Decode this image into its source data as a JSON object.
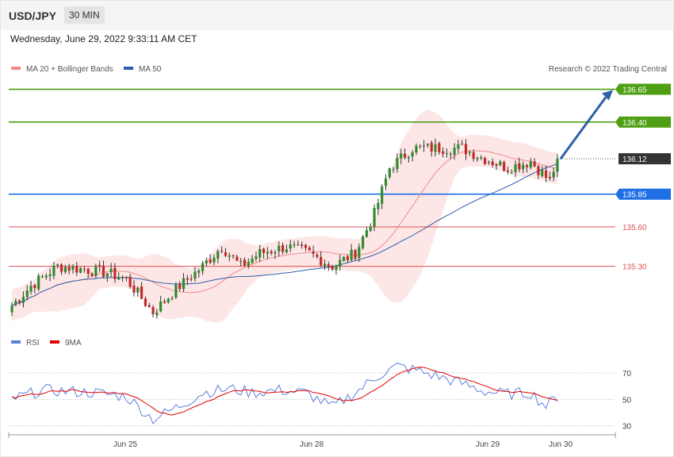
{
  "header": {
    "pair": "USD/JPY",
    "timeframe": "30 MIN",
    "datetime": "Wednesday, June 29, 2022 9:33:11 AM CET"
  },
  "legend_top": [
    {
      "label": "MA 20 + Bollinger Bands",
      "color": "#f08a8a"
    },
    {
      "label": "MA 50",
      "color": "#2e5fa8"
    }
  ],
  "legend_rsi": [
    {
      "label": "RSI",
      "color": "#5b7fdc"
    },
    {
      "label": "9MA",
      "color": "#e00000"
    }
  ],
  "credit": "Research © 2022 Trading Central",
  "colors": {
    "bull": "#2e8b2e",
    "bear": "#c62828",
    "resistance": "#4f9f15",
    "pivot": "#1f6fe5",
    "support": "#e05050",
    "last": "#333333",
    "arrow": "#2e5fa8",
    "band": "#fde2e2"
  },
  "chart_data": {
    "type": "candlestick",
    "y_range": [
      134.85,
      136.75
    ],
    "x_ticks": [
      "Jun 25",
      "Jun 28",
      "Jun 29",
      "Jun 30"
    ],
    "levels": [
      {
        "value": 136.65,
        "label": "136.65",
        "kind": "resistance"
      },
      {
        "value": 136.4,
        "label": "136.40",
        "kind": "resistance"
      },
      {
        "value": 136.12,
        "label": "136.12",
        "kind": "last"
      },
      {
        "value": 135.85,
        "label": "135.85",
        "kind": "pivot"
      },
      {
        "value": 135.6,
        "label": "135.60",
        "kind": "support"
      },
      {
        "value": 135.3,
        "label": "135.30",
        "kind": "support"
      }
    ],
    "forecast_target": 136.65,
    "rsi": {
      "levels": [
        70,
        50,
        30
      ],
      "y_range": [
        25,
        85
      ]
    },
    "close_anchors": [
      {
        "i": 0,
        "v": 135.0
      },
      {
        "i": 5,
        "v": 135.15
      },
      {
        "i": 12,
        "v": 135.3
      },
      {
        "i": 18,
        "v": 135.28
      },
      {
        "i": 25,
        "v": 135.25
      },
      {
        "i": 30,
        "v": 135.2
      },
      {
        "i": 37,
        "v": 134.95
      },
      {
        "i": 44,
        "v": 135.15
      },
      {
        "i": 50,
        "v": 135.3
      },
      {
        "i": 55,
        "v": 135.45
      },
      {
        "i": 60,
        "v": 135.3
      },
      {
        "i": 65,
        "v": 135.4
      },
      {
        "i": 72,
        "v": 135.45
      },
      {
        "i": 78,
        "v": 135.4
      },
      {
        "i": 84,
        "v": 135.3
      },
      {
        "i": 90,
        "v": 135.4
      },
      {
        "i": 95,
        "v": 135.7
      },
      {
        "i": 99,
        "v": 136.05
      },
      {
        "i": 105,
        "v": 136.2
      },
      {
        "i": 112,
        "v": 136.2
      },
      {
        "i": 118,
        "v": 136.2
      },
      {
        "i": 124,
        "v": 136.12
      },
      {
        "i": 130,
        "v": 136.05
      },
      {
        "i": 136,
        "v": 136.1
      },
      {
        "i": 141,
        "v": 135.95
      },
      {
        "i": 143,
        "v": 136.12
      }
    ],
    "rsi_anchors": [
      {
        "i": 0,
        "v": 50
      },
      {
        "i": 8,
        "v": 57
      },
      {
        "i": 15,
        "v": 56
      },
      {
        "i": 22,
        "v": 55
      },
      {
        "i": 30,
        "v": 52
      },
      {
        "i": 37,
        "v": 35
      },
      {
        "i": 44,
        "v": 45
      },
      {
        "i": 50,
        "v": 55
      },
      {
        "i": 57,
        "v": 58
      },
      {
        "i": 63,
        "v": 55
      },
      {
        "i": 70,
        "v": 57
      },
      {
        "i": 77,
        "v": 55
      },
      {
        "i": 84,
        "v": 44
      },
      {
        "i": 90,
        "v": 55
      },
      {
        "i": 96,
        "v": 68
      },
      {
        "i": 101,
        "v": 75
      },
      {
        "i": 106,
        "v": 72
      },
      {
        "i": 112,
        "v": 67
      },
      {
        "i": 118,
        "v": 62
      },
      {
        "i": 124,
        "v": 56
      },
      {
        "i": 130,
        "v": 54
      },
      {
        "i": 136,
        "v": 55
      },
      {
        "i": 140,
        "v": 45
      },
      {
        "i": 143,
        "v": 52
      }
    ]
  }
}
